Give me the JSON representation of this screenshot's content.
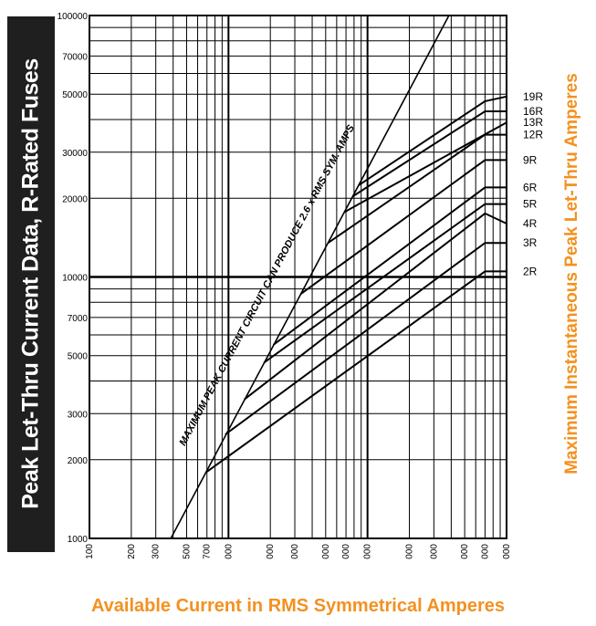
{
  "titles": {
    "left": "Peak Let-Thru Current Data,   R-Rated Fuses",
    "right": "Maximum Instantaneous Peak Let-Thru Amperes",
    "bottom": "Available Current in RMS Symmetrical Amperes"
  },
  "colors": {
    "accent": "#f39120",
    "band": "#1f1f1f",
    "lines": "#000000"
  },
  "chart_data": {
    "type": "line",
    "x_scale": "log",
    "y_scale": "log",
    "xlim": [
      100,
      100000
    ],
    "ylim": [
      1000,
      100000
    ],
    "x_ticks": [
      100,
      200,
      300,
      500,
      700,
      1000,
      2000,
      3000,
      5000,
      7000,
      10000,
      20000,
      30000,
      50000,
      70000,
      100000
    ],
    "x_tick_labels": [
      "100",
      "200",
      "300",
      "500",
      "700",
      "000",
      "000",
      "000",
      "000",
      "000",
      "000",
      "000",
      "000",
      "000",
      "000",
      "000"
    ],
    "y_ticks": [
      1000,
      2000,
      3000,
      5000,
      7000,
      10000,
      20000,
      30000,
      50000,
      70000,
      100000
    ],
    "y_tick_labels": [
      "1000",
      "2000",
      "3000",
      "5000",
      "7000",
      "10000",
      "20000",
      "30000",
      "50000",
      "70000",
      "100000"
    ],
    "grid": true,
    "annotation": "MAXIMUM PEAK CURRENT CIRCUIT CAN PRODUCE 2.6 x RMS SYM. AMPS",
    "max_peak_line": {
      "x": [
        385,
        38500
      ],
      "y": [
        1000,
        100000
      ]
    },
    "series": [
      {
        "name": "19R",
        "x": [
          8600,
          70000,
          100000
        ],
        "y": [
          22400,
          47000,
          49000
        ]
      },
      {
        "name": "16R",
        "x": [
          7800,
          70000,
          100000
        ],
        "y": [
          20300,
          43000,
          43000
        ]
      },
      {
        "name": "13R",
        "x": [
          6800,
          100000
        ],
        "y": [
          17700,
          39000
        ]
      },
      {
        "name": "12R",
        "x": [
          5200,
          70000,
          100000
        ],
        "y": [
          13500,
          35000,
          35000
        ]
      },
      {
        "name": "9R",
        "x": [
          3300,
          70000,
          100000
        ],
        "y": [
          8600,
          28000,
          28000
        ]
      },
      {
        "name": "6R",
        "x": [
          2100,
          70000,
          100000
        ],
        "y": [
          5500,
          22000,
          22000
        ]
      },
      {
        "name": "5R",
        "x": [
          1800,
          70000,
          100000
        ],
        "y": [
          4700,
          19000,
          19000
        ]
      },
      {
        "name": "4R",
        "x": [
          1300,
          70000,
          100000
        ],
        "y": [
          3400,
          17500,
          16000
        ]
      },
      {
        "name": "3R",
        "x": [
          950,
          70000,
          100000
        ],
        "y": [
          2500,
          13500,
          13500
        ]
      },
      {
        "name": "2R",
        "x": [
          700,
          70000,
          100000
        ],
        "y": [
          1800,
          10500,
          10500
        ]
      }
    ]
  }
}
